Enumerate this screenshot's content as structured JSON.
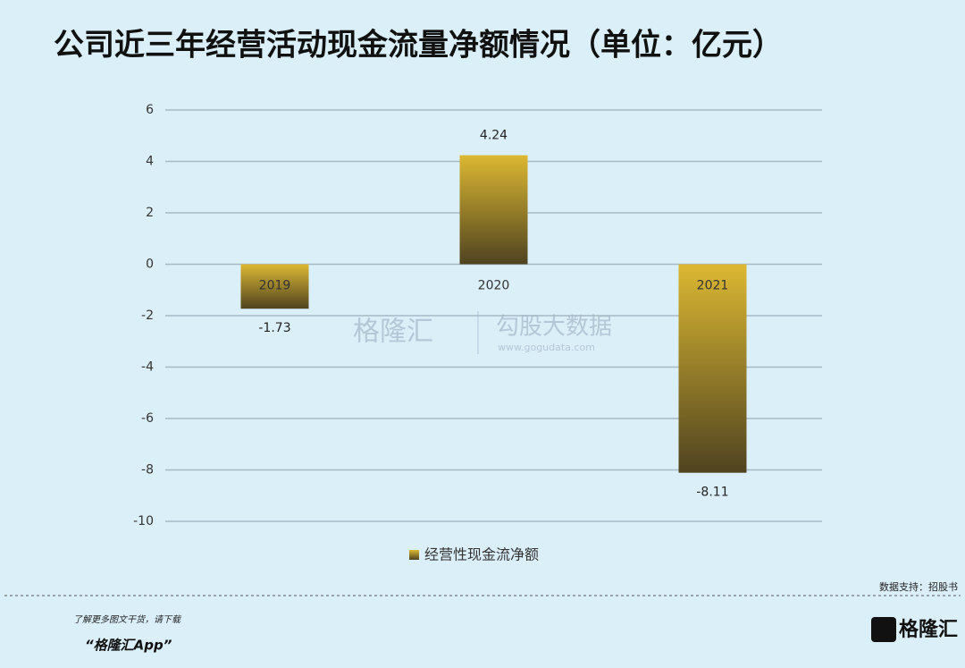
{
  "chart_data": {
    "type": "bar",
    "title": "公司近三年经营活动现金流量净额情况（单位：亿元）",
    "categories": [
      "2019",
      "2020",
      "2021"
    ],
    "series": [
      {
        "name": "经营性现金流净额",
        "color": "#dcb832",
        "values": [
          -1.73,
          4.24,
          -8.11
        ]
      }
    ],
    "ylim": [
      -10,
      6
    ],
    "yticks": [
      -10,
      -8,
      -6,
      -4,
      -2,
      0,
      2,
      4,
      6
    ],
    "grid": true
  },
  "source": "数据支持：招股书",
  "watermark": {
    "brand": "格隆汇",
    "name": "勾股大数据",
    "url": "www.gogudata.com"
  },
  "footer": {
    "line1": "了解更多图文干货，请下载",
    "line2": "“格隆汇App”",
    "logo": "格隆汇"
  }
}
